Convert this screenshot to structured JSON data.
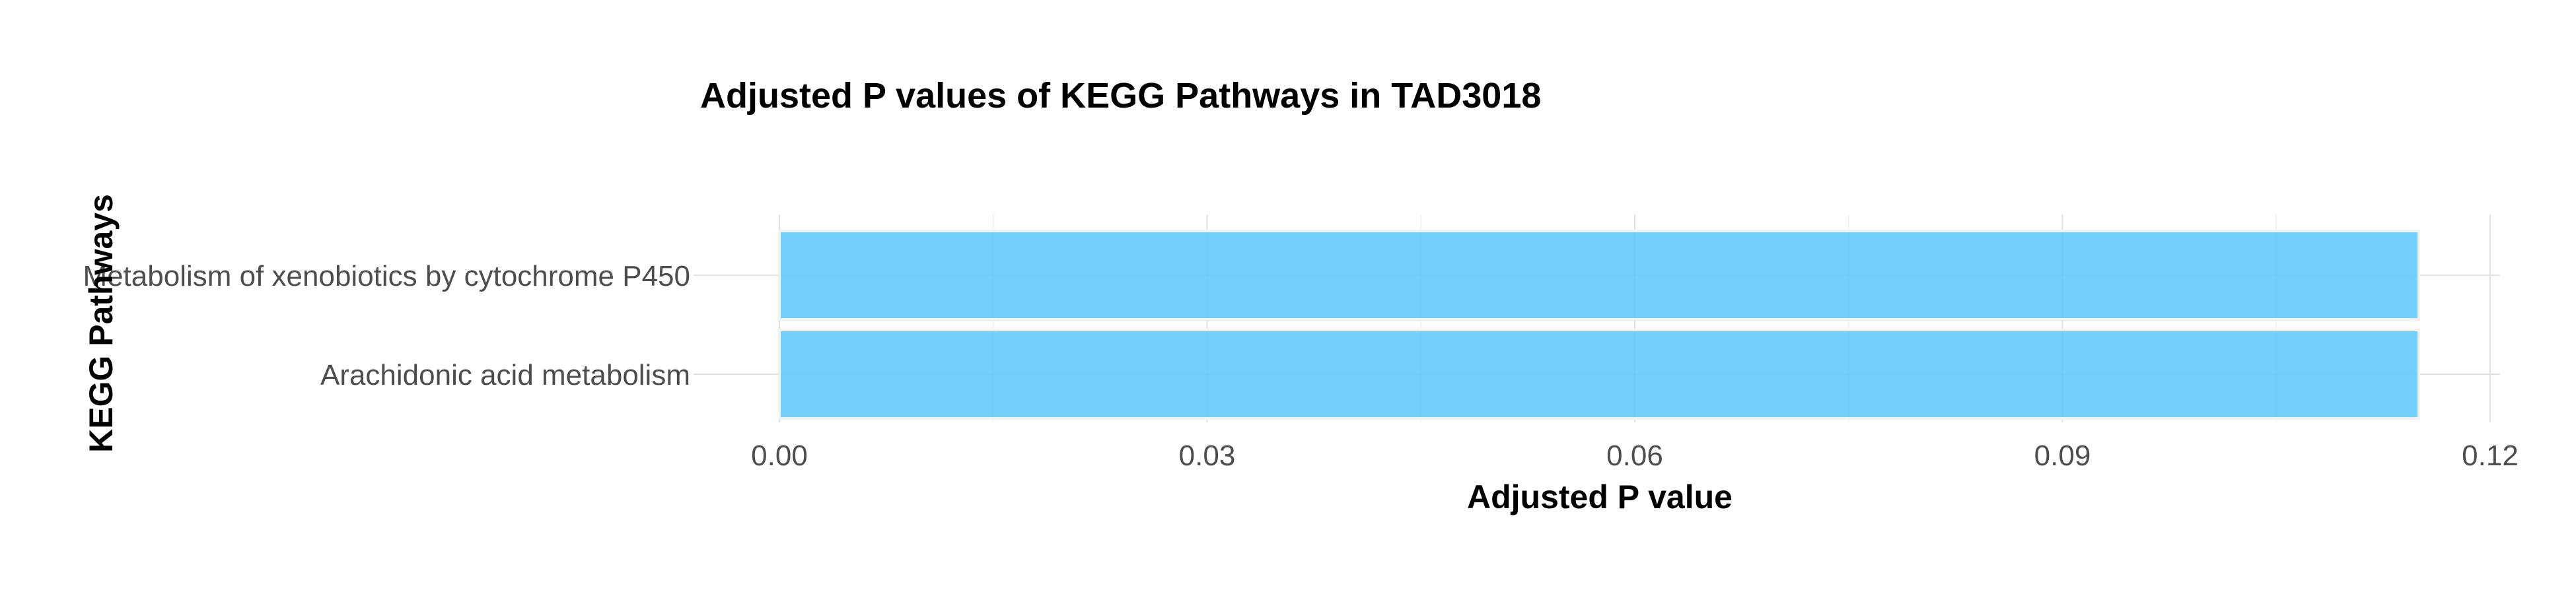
{
  "chart_data": {
    "type": "bar",
    "orientation": "horizontal",
    "title": "Adjusted P values of KEGG Pathways in TAD3018",
    "xlabel": "Adjusted P value",
    "ylabel": "KEGG Pathways",
    "categories": [
      "Metabolism of xenobiotics by cytochrome P450",
      "Arachidonic acid metabolism"
    ],
    "values": [
      0.115,
      0.115
    ],
    "xlim": [
      0,
      0.12
    ],
    "x_ticks": [
      0.0,
      0.03,
      0.06,
      0.09,
      0.12
    ],
    "x_tick_labels": [
      "0.00",
      "0.03",
      "0.06",
      "0.09",
      "0.12"
    ],
    "grid": true,
    "legend": "none",
    "bar_color": "#5bc8fb"
  }
}
